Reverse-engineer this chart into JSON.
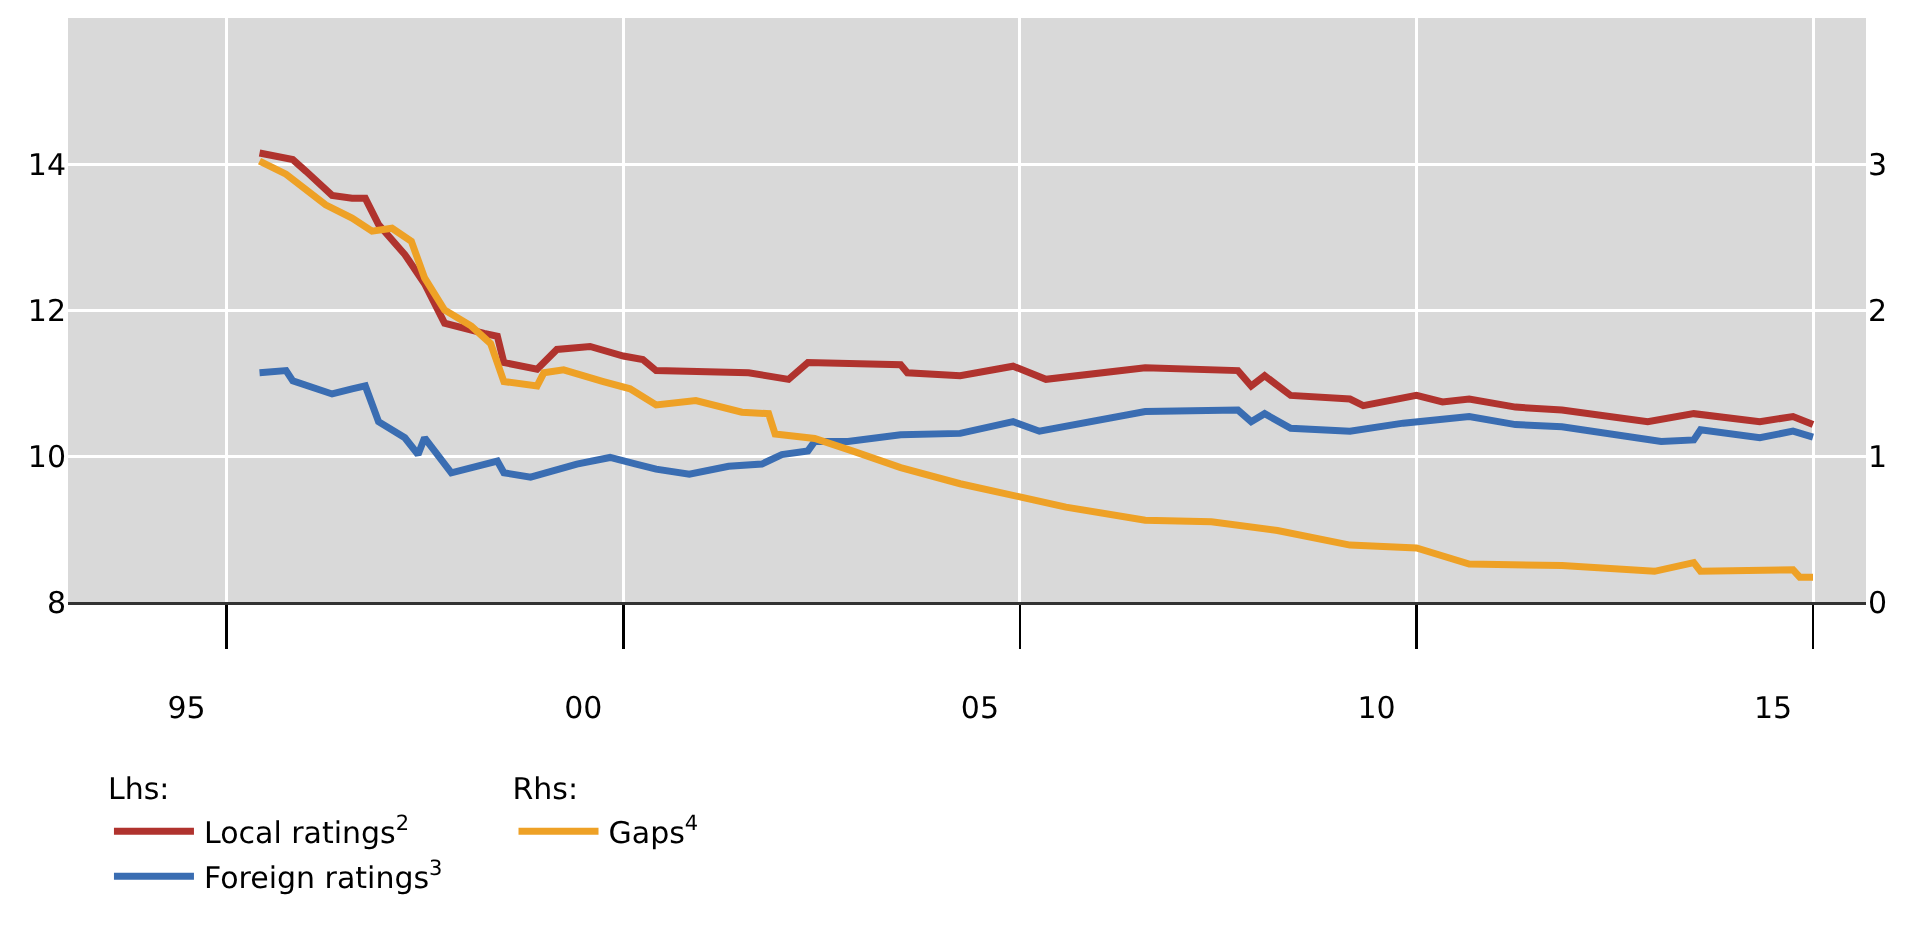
{
  "chart_data": {
    "type": "line",
    "legend_title": "Lhs:",
    "annotations": [
      "Rhs:"
    ],
    "xlim": [
      "1994-01",
      "2016-09"
    ],
    "xticks": [
      {
        "value": "1995-07",
        "label": "95"
      },
      {
        "value": "2000-07",
        "label": "00"
      },
      {
        "value": "2005-07",
        "label": "05"
      },
      {
        "value": "2010-07",
        "label": "10"
      },
      {
        "value": "2015-07",
        "label": "15"
      },
      {
        "value": "1996-01",
        "label": null
      },
      {
        "value": "2001-01",
        "label": null
      },
      {
        "value": "2006-01",
        "label": null
      },
      {
        "value": "2011-01",
        "label": null
      },
      {
        "value": "2016-01",
        "label": null
      }
    ],
    "ylim": [
      8,
      16
    ],
    "yticks": [
      8,
      10,
      12,
      14
    ],
    "y2lim": [
      0,
      4
    ],
    "y2ticks": [
      0,
      1,
      2,
      3
    ],
    "grid": true,
    "legend": "bottom",
    "line_style": "solid",
    "marker": "none",
    "series": [
      {
        "name": "Local ratings$^{2}$",
        "color": "#b0332e",
        "x": [
          "1996-06",
          "1996-11",
          "1997-01",
          "1997-05",
          "1997-08",
          "1997-10",
          "1997-12",
          "1998-04",
          "1998-07",
          "1998-10",
          "1999-04",
          "1999-06",
          "1999-07",
          "1999-12",
          "2000-03",
          "2000-08",
          "2001-01",
          "2001-04",
          "2001-06",
          "2002-08",
          "2003-02",
          "2003-05",
          "2004-07",
          "2004-08",
          "2005-04",
          "2005-12",
          "2006-05",
          "2007-08",
          "2008-10",
          "2008-12",
          "2009-02",
          "2009-06",
          "2010-03",
          "2010-05",
          "2011-01",
          "2011-05",
          "2011-09",
          "2012-04",
          "2012-11",
          "2013-12",
          "2014-07",
          "2015-05",
          "2015-10",
          "2016-01"
        ],
        "values": [
          14.15,
          14.06,
          13.9,
          13.57,
          13.53,
          13.53,
          13.17,
          12.76,
          12.36,
          11.82,
          11.68,
          11.64,
          11.28,
          11.19,
          11.46,
          11.5,
          11.37,
          11.32,
          11.17,
          11.14,
          11.05,
          11.28,
          11.25,
          11.14,
          11.1,
          11.23,
          11.05,
          11.21,
          11.17,
          10.96,
          11.1,
          10.83,
          10.78,
          10.69,
          10.83,
          10.74,
          10.78,
          10.67,
          10.63,
          10.47,
          10.58,
          10.47,
          10.54,
          10.43
        ]
      },
      {
        "name": "Foreign ratings$^{3}$",
        "color": "#3a6db2",
        "x": [
          "1996-06",
          "1996-10",
          "1996-11",
          "1997-05",
          "1997-08",
          "1997-10",
          "1997-12",
          "1998-04",
          "1998-06",
          "1998-07",
          "1998-11",
          "1999-06",
          "1999-07",
          "1999-11",
          "2000-06",
          "2000-11",
          "2001-03",
          "2001-06",
          "2001-11",
          "2002-05",
          "2002-10",
          "2003-01",
          "2003-05",
          "2003-06",
          "2003-11",
          "2004-07",
          "2005-04",
          "2005-12",
          "2006-04",
          "2007-08",
          "2008-10",
          "2008-12",
          "2009-02",
          "2009-06",
          "2010-03",
          "2010-11",
          "2011-09",
          "2012-04",
          "2012-11",
          "2014-02",
          "2014-07",
          "2014-08",
          "2015-05",
          "2015-10",
          "2016-01"
        ],
        "values": [
          11.14,
          11.17,
          11.03,
          10.85,
          10.92,
          10.96,
          10.47,
          10.25,
          10.02,
          10.25,
          9.77,
          9.93,
          9.77,
          9.71,
          9.89,
          9.98,
          9.89,
          9.82,
          9.75,
          9.86,
          9.89,
          10.02,
          10.07,
          10.2,
          10.2,
          10.29,
          10.31,
          10.47,
          10.34,
          10.61,
          10.63,
          10.47,
          10.58,
          10.38,
          10.34,
          10.45,
          10.54,
          10.43,
          10.4,
          10.2,
          10.22,
          10.36,
          10.25,
          10.34,
          10.26
        ]
      },
      {
        "name": "Gaps$^{4}$",
        "color": "#eea126",
        "axis": "y2",
        "x": [
          "1996-06",
          "1996-10",
          "1997-04",
          "1997-08",
          "1997-11",
          "1998-02",
          "1998-05",
          "1998-07",
          "1998-10",
          "1999-02",
          "1999-05",
          "1999-07",
          "1999-12",
          "2000-01",
          "2000-04",
          "2000-10",
          "2001-02",
          "2001-06",
          "2001-12",
          "2002-07",
          "2002-11",
          "2002-12",
          "2003-06",
          "2003-12",
          "2004-07",
          "2005-04",
          "2006-01",
          "2006-08",
          "2007-08",
          "2008-06",
          "2009-04",
          "2010-03",
          "2011-01",
          "2011-09",
          "2012-11",
          "2014-01",
          "2014-07",
          "2014-08",
          "2015-10",
          "2015-11",
          "2016-01"
        ],
        "values": [
          3.02,
          2.93,
          2.72,
          2.63,
          2.54,
          2.56,
          2.47,
          2.22,
          2.0,
          1.89,
          1.77,
          1.51,
          1.48,
          1.57,
          1.59,
          1.51,
          1.46,
          1.35,
          1.38,
          1.3,
          1.29,
          1.15,
          1.12,
          1.03,
          0.92,
          0.81,
          0.72,
          0.65,
          0.56,
          0.55,
          0.49,
          0.39,
          0.37,
          0.26,
          0.25,
          0.21,
          0.27,
          0.21,
          0.22,
          0.17,
          0.17
        ]
      }
    ]
  }
}
